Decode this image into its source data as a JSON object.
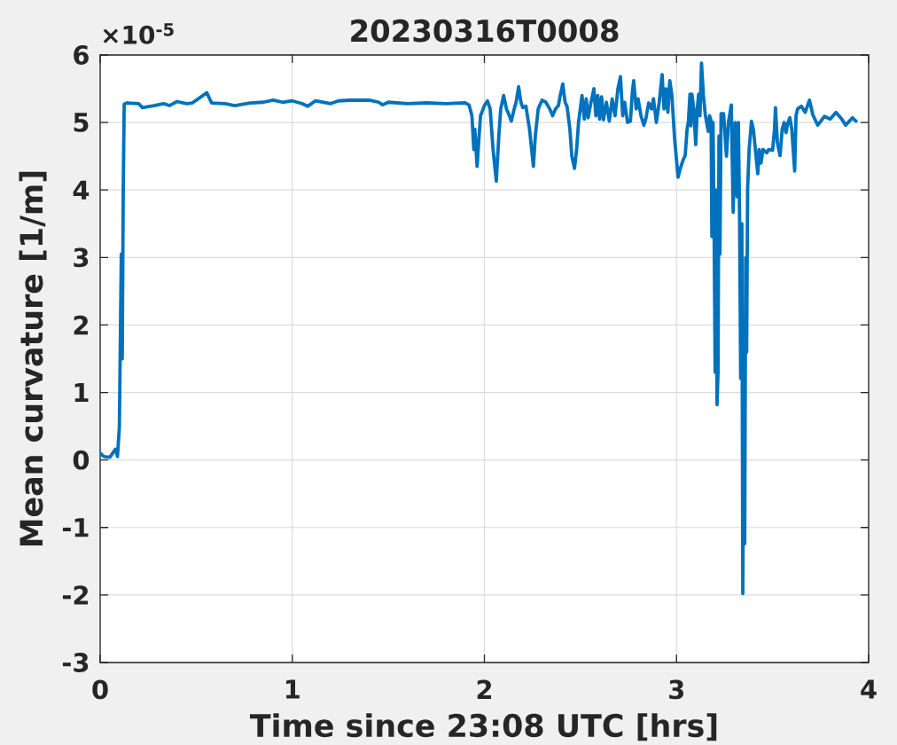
{
  "chart_data": {
    "type": "line",
    "title": "20230316T0008",
    "xlabel": "Time since 23:08 UTC [hrs]",
    "ylabel": "Mean curvature [1/m]",
    "annotations": [
      "×10$^{-5}$"
    ],
    "x": [
      0.0,
      0.02,
      0.05,
      0.08,
      0.09,
      0.1,
      0.11,
      0.115,
      0.12,
      0.125,
      0.14,
      0.2,
      0.22,
      0.28,
      0.33,
      0.36,
      0.4,
      0.45,
      0.48,
      0.555,
      0.58,
      0.65,
      0.7,
      0.78,
      0.85,
      0.9,
      0.95,
      1.0,
      1.05,
      1.08,
      1.12,
      1.2,
      1.24,
      1.3,
      1.4,
      1.45,
      1.47,
      1.5,
      1.6,
      1.7,
      1.8,
      1.9,
      1.92,
      1.935,
      1.945,
      1.95,
      1.962,
      1.97,
      1.98,
      2.0,
      2.016,
      2.03,
      2.045,
      2.062,
      2.075,
      2.085,
      2.1,
      2.115,
      2.13,
      2.14,
      2.155,
      2.165,
      2.178,
      2.19,
      2.2,
      2.216,
      2.235,
      2.255,
      2.265,
      2.28,
      2.3,
      2.32,
      2.34,
      2.355,
      2.37,
      2.385,
      2.395,
      2.408,
      2.42,
      2.43,
      2.445,
      2.455,
      2.469,
      2.48,
      2.49,
      2.508,
      2.52,
      2.53,
      2.54,
      2.555,
      2.57,
      2.58,
      2.59,
      2.6,
      2.61,
      2.62,
      2.635,
      2.65,
      2.665,
      2.68,
      2.695,
      2.708,
      2.72,
      2.73,
      2.745,
      2.76,
      2.77,
      2.777,
      2.79,
      2.8,
      2.815,
      2.83,
      2.84,
      2.855,
      2.87,
      2.88,
      2.895,
      2.91,
      2.925,
      2.935,
      2.945,
      2.955,
      2.965,
      2.976,
      2.99,
      3.008,
      3.02,
      3.035,
      3.045,
      3.055,
      3.062,
      3.07,
      3.075,
      3.08,
      3.09,
      3.1,
      3.108,
      3.115,
      3.122,
      3.13,
      3.14,
      3.15,
      3.165,
      3.172,
      3.18,
      3.184,
      3.19,
      3.196,
      3.201,
      3.205,
      3.211,
      3.216,
      3.221,
      3.226,
      3.232,
      3.245,
      3.26,
      3.27,
      3.285,
      3.295,
      3.305,
      3.315,
      3.322,
      3.328,
      3.334,
      3.34,
      3.345,
      3.35,
      3.355,
      3.36,
      3.365,
      3.37,
      3.378,
      3.39,
      3.4,
      3.423,
      3.43,
      3.44,
      3.45,
      3.47,
      3.48,
      3.5,
      3.51,
      3.515,
      3.525,
      3.539,
      3.55,
      3.56,
      3.57,
      3.58,
      3.59,
      3.6,
      3.615,
      3.622,
      3.63,
      3.65,
      3.67,
      3.692,
      3.71,
      3.735,
      3.77,
      3.8,
      3.83,
      3.86,
      3.88,
      3.916,
      3.934
    ],
    "series": [
      {
        "color": "#0072bd",
        "values": [
          0.1,
          0.05,
          0.04,
          0.16,
          0.05,
          0.49,
          3.05,
          1.5,
          3.97,
          5.27,
          5.29,
          5.28,
          5.22,
          5.25,
          5.28,
          5.25,
          5.31,
          5.28,
          5.29,
          5.44,
          5.29,
          5.28,
          5.25,
          5.29,
          5.3,
          5.33,
          5.3,
          5.32,
          5.28,
          5.24,
          5.32,
          5.28,
          5.32,
          5.33,
          5.33,
          5.3,
          5.26,
          5.3,
          5.28,
          5.29,
          5.28,
          5.29,
          5.26,
          5.1,
          4.6,
          4.9,
          4.35,
          4.7,
          5.1,
          5.25,
          5.32,
          5.2,
          4.6,
          4.13,
          4.8,
          5.2,
          5.4,
          5.2,
          5.1,
          5.02,
          5.2,
          5.3,
          5.53,
          5.3,
          5.22,
          5.24,
          4.9,
          4.35,
          4.8,
          5.2,
          5.33,
          5.3,
          5.2,
          5.1,
          5.2,
          5.25,
          5.4,
          5.57,
          5.3,
          5.24,
          4.9,
          4.5,
          4.32,
          4.6,
          5.0,
          5.4,
          5.05,
          5.35,
          5.07,
          5.3,
          5.5,
          5.1,
          5.4,
          5.05,
          5.38,
          5.04,
          5.3,
          5.02,
          5.35,
          5.1,
          5.5,
          5.68,
          5.1,
          5.3,
          5.0,
          5.02,
          5.45,
          5.62,
          5.2,
          5.35,
          5.1,
          4.96,
          5.05,
          5.29,
          5.2,
          5.35,
          5.0,
          5.3,
          5.71,
          5.2,
          5.5,
          5.15,
          5.62,
          5.4,
          4.76,
          4.19,
          4.32,
          4.45,
          4.51,
          4.9,
          5.02,
          5.42,
          4.95,
          5.42,
          5.2,
          4.67,
          5.2,
          5.42,
          5.1,
          5.88,
          5.4,
          5.11,
          4.87,
          5.1,
          5.02,
          3.31,
          5.0,
          3.3,
          1.3,
          4.0,
          0.82,
          1.3,
          4.8,
          3.05,
          5.13,
          5.13,
          4.5,
          5.0,
          5.26,
          3.67,
          5.0,
          3.9,
          5.0,
          3.67,
          1.21,
          3.5,
          -1.98,
          0.5,
          -1.24,
          3.0,
          1.6,
          4.02,
          4.6,
          5.02,
          4.9,
          4.24,
          4.6,
          4.4,
          4.6,
          4.55,
          4.6,
          4.59,
          4.9,
          5.22,
          4.7,
          4.51,
          4.9,
          5.0,
          4.85,
          5.0,
          5.07,
          4.9,
          4.28,
          5.1,
          5.2,
          5.24,
          5.15,
          5.33,
          5.11,
          4.96,
          5.09,
          5.05,
          5.15,
          5.05,
          4.96,
          5.07,
          5.02
        ]
      }
    ],
    "xlim": [
      0,
      4
    ],
    "ylim": [
      -3,
      6
    ],
    "xticks": [
      0,
      1,
      2,
      3,
      4
    ],
    "yticks": [
      -3,
      -2,
      -1,
      0,
      1,
      2,
      3,
      4,
      5,
      6
    ],
    "grid": true,
    "line_style": "solid"
  }
}
